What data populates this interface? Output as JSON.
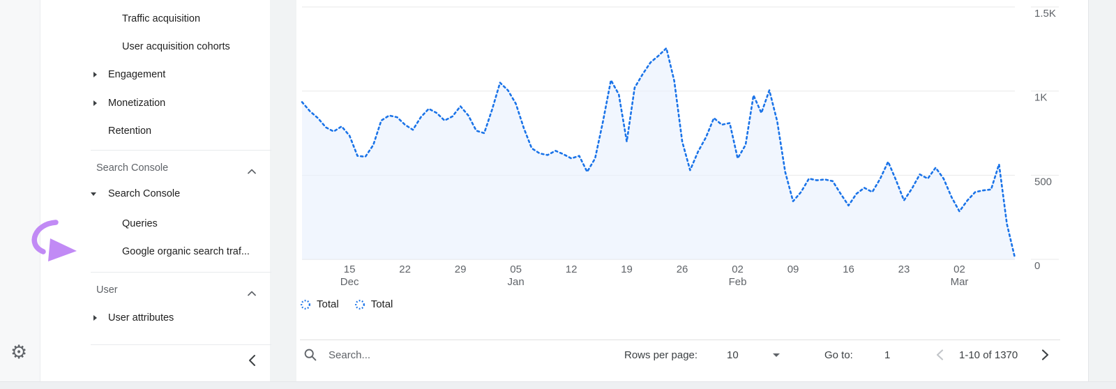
{
  "colors": {
    "accent_blue": "#1a73e8",
    "area_fill": "#e8f0fe",
    "annotation_arrow": "#c18af5",
    "grid_line": "#e8e8e8"
  },
  "left_rail": {
    "gear_icon": "admin-gear"
  },
  "sidebar": {
    "reports_items": [
      {
        "label": "Traffic acquisition"
      },
      {
        "label": "User acquisition cohorts"
      },
      {
        "label": "Engagement"
      },
      {
        "label": "Monetization"
      },
      {
        "label": "Retention"
      }
    ],
    "search_console_section": {
      "title": "Search Console",
      "items": [
        {
          "label": "Search Console"
        },
        {
          "label": "Queries"
        },
        {
          "label": "Google organic search traf..."
        }
      ]
    },
    "user_section": {
      "title": "User",
      "items": [
        {
          "label": "User attributes"
        }
      ]
    }
  },
  "toolbar": {
    "search_placeholder": "Search...",
    "rows_per_page_label": "Rows per page:",
    "rows_per_page_value": "10",
    "go_to_label": "Go to:",
    "go_to_value": "1",
    "range_text": "1-10 of 1370"
  },
  "chart_data": {
    "type": "area",
    "line_style": "dotted",
    "line_color": "#1a73e8",
    "fill_color": "#e8f0fe",
    "grid": true,
    "ylim": [
      0,
      1500
    ],
    "yticks": [
      {
        "value": 0,
        "label": "0"
      },
      {
        "value": 500,
        "label": "500"
      },
      {
        "value": 1000,
        "label": "1K"
      },
      {
        "value": 1500,
        "label": "1.5K"
      }
    ],
    "xticks": [
      {
        "day": 6,
        "label": "15",
        "sublabel": "Dec"
      },
      {
        "day": 13,
        "label": "22",
        "sublabel": ""
      },
      {
        "day": 20,
        "label": "29",
        "sublabel": ""
      },
      {
        "day": 27,
        "label": "05",
        "sublabel": "Jan"
      },
      {
        "day": 34,
        "label": "12",
        "sublabel": ""
      },
      {
        "day": 41,
        "label": "19",
        "sublabel": ""
      },
      {
        "day": 48,
        "label": "26",
        "sublabel": ""
      },
      {
        "day": 55,
        "label": "02",
        "sublabel": "Feb"
      },
      {
        "day": 62,
        "label": "09",
        "sublabel": ""
      },
      {
        "day": 69,
        "label": "16",
        "sublabel": ""
      },
      {
        "day": 76,
        "label": "23",
        "sublabel": ""
      },
      {
        "day": 83,
        "label": "02",
        "sublabel": "Mar"
      }
    ],
    "values": [
      935,
      880,
      840,
      785,
      760,
      790,
      735,
      615,
      610,
      680,
      825,
      855,
      845,
      800,
      770,
      845,
      895,
      870,
      825,
      850,
      910,
      855,
      765,
      750,
      890,
      1050,
      1005,
      925,
      780,
      660,
      630,
      620,
      645,
      625,
      600,
      615,
      520,
      600,
      820,
      1065,
      980,
      700,
      1020,
      1100,
      1170,
      1210,
      1255,
      1060,
      700,
      530,
      640,
      725,
      840,
      800,
      810,
      600,
      680,
      975,
      870,
      1005,
      820,
      520,
      345,
      400,
      480,
      470,
      475,
      465,
      390,
      320,
      390,
      425,
      400,
      480,
      580,
      470,
      350,
      420,
      505,
      480,
      545,
      480,
      370,
      285,
      350,
      400,
      410,
      415,
      565,
      210,
      10
    ],
    "legend": [
      {
        "label": "Total"
      },
      {
        "label": "Total"
      }
    ]
  }
}
